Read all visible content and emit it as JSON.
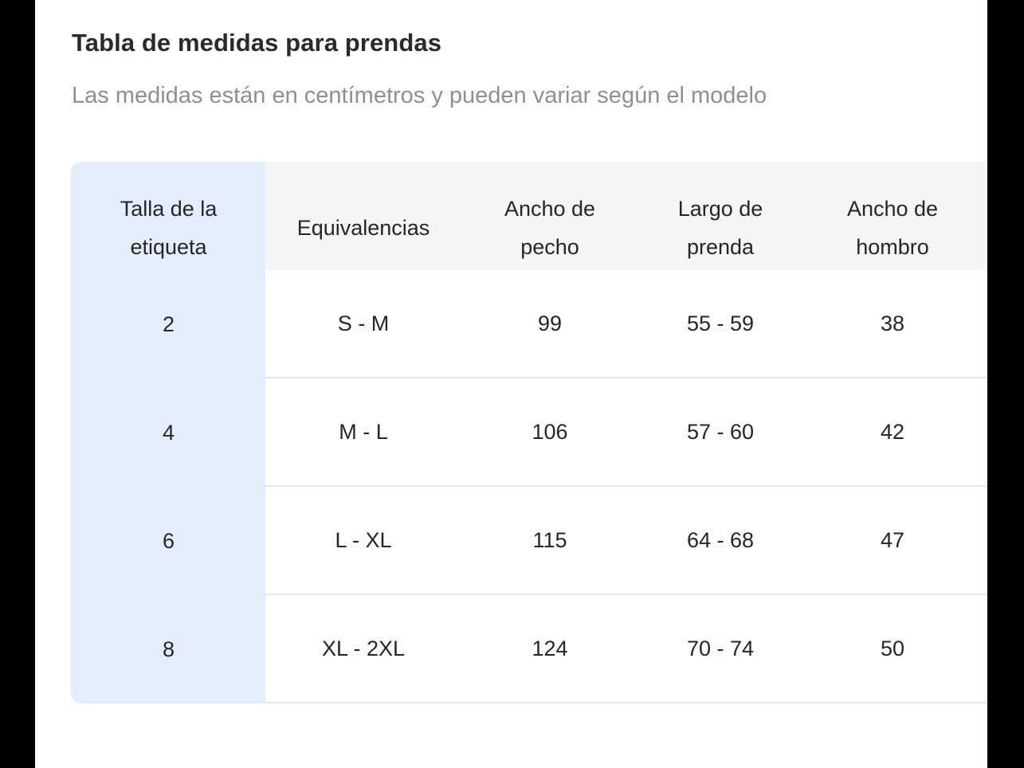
{
  "page": {
    "title": "Tabla de medidas para prendas",
    "subtitle": "Las medidas están en centímetros y pueden variar según el modelo"
  },
  "table": {
    "columns": [
      "Talla de la etiqueta",
      "Equivalencias",
      "Ancho de pecho",
      "Largo de prenda",
      "Ancho de hombro"
    ],
    "rows": [
      [
        "2",
        "S - M",
        "99",
        "55 - 59",
        "38"
      ],
      [
        "4",
        "M - L",
        "106",
        "57 - 60",
        "42"
      ],
      [
        "6",
        "L - XL",
        "115",
        "64 - 68",
        "47"
      ],
      [
        "8",
        "XL - 2XL",
        "124",
        "70 - 74",
        "50"
      ]
    ]
  },
  "colors": {
    "frame_bars": "#000000",
    "first_column_bg": "#e4edfb",
    "header_bg": "#f5f5f5",
    "divider": "#e0e0e0",
    "title_text": "#2a2a2a",
    "subtitle_text": "#8f8f8f",
    "cell_text": "#262626"
  }
}
